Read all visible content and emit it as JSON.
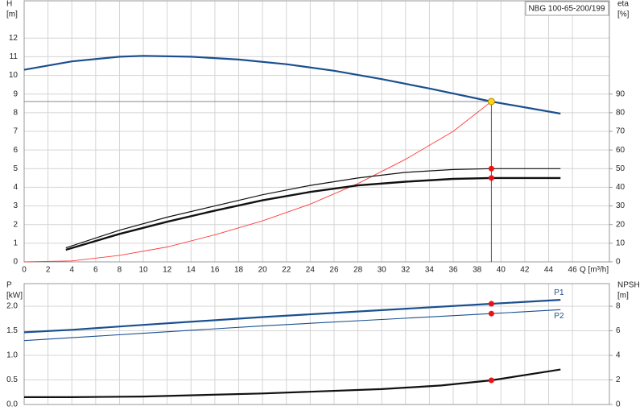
{
  "chart_data": [
    {
      "type": "line",
      "title": "NBG 100-65-200/199",
      "x_label": "Q [m³/h]",
      "y_label": "H",
      "y_unit": "[m]",
      "y2_label": "eta",
      "y2_unit": "[%]",
      "xlim": [
        0,
        49.1
      ],
      "xticks": [
        0,
        2,
        4,
        6,
        8,
        10,
        12,
        14,
        16,
        18,
        20,
        22,
        24,
        26,
        28,
        30,
        32,
        34,
        36,
        38,
        40,
        42,
        44,
        46
      ],
      "ylim": [
        0,
        14
      ],
      "yticks": [
        0,
        1,
        2,
        3,
        4,
        5,
        6,
        7,
        8,
        9,
        10,
        11,
        12
      ],
      "y2lim": [
        0,
        140
      ],
      "y2ticks": [
        0,
        10,
        20,
        30,
        40,
        50,
        60,
        70,
        80,
        90
      ],
      "grid": true,
      "marker_x": 39.2,
      "duty_point": {
        "x": 39.2,
        "y": 8.6
      },
      "series": [
        {
          "color": "#1a4f8f",
          "x": [
            0,
            4,
            8,
            10,
            14,
            18,
            22,
            26,
            30,
            34,
            39.2,
            45
          ],
          "values": [
            10.3,
            10.75,
            11.0,
            11.05,
            11.0,
            10.85,
            10.6,
            10.25,
            9.8,
            9.3,
            8.6,
            7.95
          ]
        },
        {
          "color": "#ff3b3b",
          "axis": "y2",
          "x": [
            0,
            4,
            8,
            12,
            16,
            20,
            24,
            28,
            32,
            36,
            39.2
          ],
          "values": [
            0,
            0.5,
            3.5,
            8,
            14.5,
            22,
            31,
            42,
            55,
            70,
            86
          ]
        },
        {
          "color": "#111111",
          "axis": "y2",
          "marker": true,
          "x": [
            3.5,
            8,
            12,
            16,
            20,
            24,
            28,
            32,
            36,
            39.2,
            45
          ],
          "values": [
            7.5,
            17,
            24,
            30,
            36,
            41,
            45,
            48,
            49.5,
            50,
            50
          ]
        },
        {
          "color": "#111111",
          "axis": "y2",
          "marker": true,
          "x": [
            3.5,
            8,
            12,
            16,
            20,
            24,
            28,
            32,
            36,
            39.2,
            45
          ],
          "values": [
            6.5,
            15,
            21.5,
            27.5,
            33,
            37.5,
            41,
            43,
            44.5,
            45,
            45
          ]
        }
      ]
    },
    {
      "type": "line",
      "y_label": "P",
      "y_unit": "[kW]",
      "y2_label": "NPSH",
      "y2_unit": "[m]",
      "xlim": [
        0,
        49.1
      ],
      "xticks": [
        0,
        2,
        4,
        6,
        8,
        10,
        12,
        14,
        16,
        18,
        20,
        22,
        24,
        26,
        28,
        30,
        32,
        34,
        36,
        38,
        40,
        42,
        44,
        46
      ],
      "xtick_labels": false,
      "ylim": [
        0,
        2.46
      ],
      "yticks": [
        {
          "value": 0,
          "label": "0.0"
        },
        0.5,
        {
          "value": 1,
          "label": "1.0"
        },
        1.5,
        {
          "value": 2,
          "label": "2.0"
        }
      ],
      "y2lim": [
        0,
        9.84
      ],
      "y2ticks": [
        0,
        2,
        4,
        6,
        8
      ],
      "grid": true,
      "marker_x": 39.2,
      "series": [
        {
          "name": "P1",
          "color": "#1a4f8f",
          "marker": true,
          "x": [
            0,
            4,
            10,
            20,
            30,
            39.2,
            45
          ],
          "values": [
            1.47,
            1.52,
            1.62,
            1.78,
            1.92,
            2.05,
            2.13
          ]
        },
        {
          "name": "P2",
          "color": "#1a4f8f",
          "marker": true,
          "x": [
            0,
            10,
            20,
            30,
            39.2,
            45
          ],
          "values": [
            1.3,
            1.45,
            1.6,
            1.73,
            1.85,
            1.93
          ]
        },
        {
          "color": "#111111",
          "axis": "y2",
          "marker": true,
          "x": [
            0,
            4,
            10,
            20,
            30,
            35,
            39.2,
            45
          ],
          "values": [
            0.6,
            0.6,
            0.65,
            0.9,
            1.25,
            1.55,
            1.97,
            2.85
          ]
        }
      ]
    }
  ]
}
